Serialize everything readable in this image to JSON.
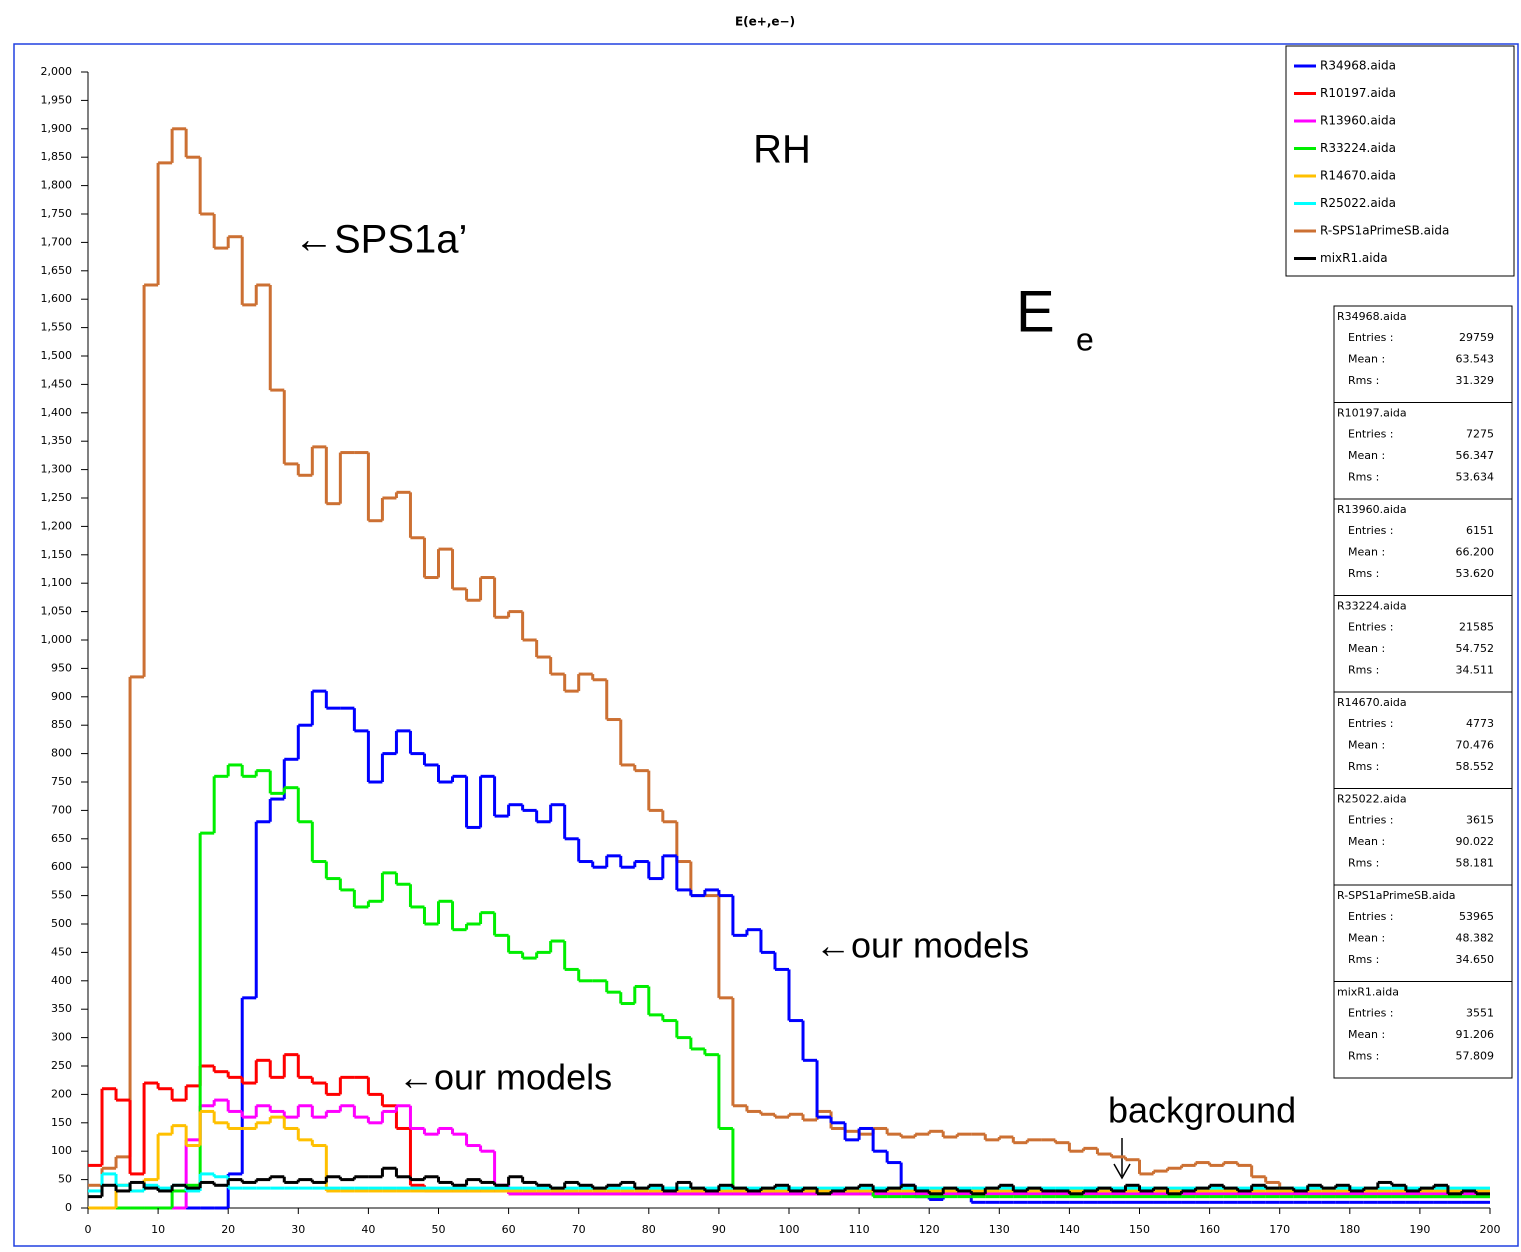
{
  "chart_data": {
    "type": "histogram",
    "title": "E(e+,e−)",
    "bins": [
      0,
      2,
      4,
      6,
      8,
      10,
      12,
      14,
      16,
      18,
      20,
      22,
      24,
      26,
      28,
      30,
      32,
      34,
      36,
      38,
      40,
      42,
      44,
      46,
      48,
      50,
      52,
      54,
      56,
      58,
      60,
      62,
      64,
      66,
      68,
      70,
      72,
      74,
      76,
      78,
      80,
      82,
      84,
      86,
      88,
      90,
      92,
      94,
      96,
      98,
      100,
      102,
      104,
      106,
      108,
      110,
      112,
      114,
      116,
      118,
      120,
      122,
      124,
      126,
      128,
      130,
      132,
      134,
      136,
      138,
      140,
      142,
      144,
      146,
      148,
      150,
      152,
      154,
      156,
      158,
      160,
      162,
      164,
      166,
      168,
      170,
      172,
      174,
      176,
      178,
      180,
      182,
      184,
      186,
      188,
      190,
      192,
      194,
      196,
      198,
      200
    ],
    "series": [
      {
        "name": "R34968.aida",
        "color": "#0000ff",
        "values": [
          0,
          0,
          0,
          0,
          0,
          0,
          0,
          0,
          0,
          0,
          60,
          370,
          680,
          720,
          790,
          850,
          910,
          880,
          880,
          840,
          750,
          800,
          840,
          800,
          780,
          750,
          760,
          670,
          760,
          690,
          710,
          700,
          680,
          710,
          650,
          610,
          600,
          620,
          600,
          610,
          580,
          620,
          560,
          550,
          560,
          550,
          480,
          490,
          450,
          420,
          330,
          260,
          160,
          150,
          120,
          140,
          100,
          80,
          40,
          20,
          15,
          30,
          30,
          10,
          10,
          10,
          10,
          10,
          10,
          10,
          10,
          10,
          10,
          10,
          10,
          10,
          10,
          10,
          10,
          10,
          10,
          10,
          10,
          10,
          10,
          10,
          10,
          10,
          10,
          10,
          10,
          10,
          10,
          10,
          10,
          10,
          10,
          10,
          10,
          10
        ]
      },
      {
        "name": "R10197.aida",
        "color": "#ff0000",
        "values": [
          75,
          210,
          190,
          60,
          220,
          210,
          190,
          215,
          250,
          240,
          230,
          220,
          260,
          230,
          270,
          230,
          220,
          200,
          230,
          230,
          200,
          180,
          140,
          40,
          30,
          30,
          30,
          30,
          30,
          30,
          25,
          25,
          25,
          25,
          25,
          25,
          25,
          25,
          25,
          25,
          25,
          25,
          25,
          25,
          25,
          25,
          25,
          25,
          25,
          25,
          25,
          25,
          25,
          25,
          25,
          25,
          25,
          25,
          25,
          25,
          25,
          25,
          25,
          25,
          25,
          25,
          25,
          25,
          25,
          25,
          25,
          25,
          25,
          25,
          25,
          25,
          25,
          25,
          25,
          25,
          25,
          25,
          25,
          25,
          25,
          25,
          25,
          25,
          25,
          25,
          25,
          25,
          25,
          25,
          25,
          25,
          25,
          25,
          25,
          25
        ]
      },
      {
        "name": "R13960.aida",
        "color": "#ff00ff",
        "values": [
          0,
          0,
          0,
          0,
          0,
          0,
          0,
          120,
          180,
          190,
          170,
          160,
          180,
          170,
          160,
          180,
          160,
          170,
          180,
          160,
          150,
          170,
          180,
          140,
          130,
          140,
          130,
          110,
          100,
          40,
          25,
          25,
          25,
          25,
          25,
          25,
          25,
          25,
          25,
          25,
          25,
          25,
          25,
          25,
          25,
          25,
          25,
          25,
          25,
          25,
          25,
          25,
          25,
          25,
          25,
          25,
          25,
          25,
          25,
          25,
          25,
          25,
          25,
          25,
          25,
          25,
          25,
          25,
          25,
          25,
          25,
          25,
          25,
          25,
          25,
          25,
          25,
          25,
          25,
          25,
          25,
          25,
          25,
          25,
          25,
          25,
          25,
          25,
          25,
          25,
          25,
          25,
          25,
          25,
          25,
          25,
          25,
          25,
          25,
          25
        ]
      },
      {
        "name": "R33224.aida",
        "color": "#00ee00",
        "values": [
          0,
          0,
          0,
          0,
          0,
          0,
          30,
          40,
          660,
          760,
          780,
          760,
          770,
          730,
          740,
          680,
          610,
          580,
          560,
          530,
          540,
          590,
          570,
          530,
          500,
          540,
          490,
          500,
          520,
          480,
          450,
          440,
          450,
          470,
          420,
          400,
          400,
          380,
          360,
          390,
          340,
          330,
          300,
          280,
          270,
          140,
          35,
          30,
          30,
          30,
          30,
          30,
          30,
          30,
          30,
          30,
          20,
          20,
          20,
          20,
          20,
          20,
          20,
          20,
          20,
          20,
          20,
          20,
          20,
          20,
          20,
          20,
          20,
          20,
          20,
          20,
          20,
          20,
          20,
          20,
          20,
          20,
          20,
          20,
          20,
          20,
          20,
          20,
          20,
          20,
          20,
          20,
          20,
          20,
          20,
          20,
          20,
          20,
          20,
          20
        ]
      },
      {
        "name": "R14670.aida",
        "color": "#ffc000",
        "values": [
          0,
          0,
          40,
          30,
          50,
          130,
          145,
          110,
          170,
          150,
          140,
          140,
          150,
          160,
          140,
          120,
          110,
          30,
          30,
          30,
          30,
          30,
          30,
          30,
          30,
          30,
          30,
          30,
          30,
          30,
          30,
          30,
          30,
          30,
          30,
          30,
          30,
          30,
          30,
          30,
          30,
          30,
          30,
          30,
          30,
          30,
          30,
          30,
          30,
          30,
          30,
          30,
          30,
          30,
          30,
          30,
          30,
          30,
          30,
          30,
          30,
          30,
          30,
          30,
          30,
          30,
          30,
          30,
          30,
          30,
          30,
          30,
          30,
          30,
          30,
          30,
          30,
          30,
          30,
          30,
          30,
          30,
          30,
          30,
          30,
          30,
          30,
          30,
          30,
          30,
          30,
          30,
          30,
          30,
          30,
          30,
          30,
          30,
          30,
          30
        ]
      },
      {
        "name": "R25022.aida",
        "color": "#00ffff",
        "values": [
          30,
          60,
          40,
          30,
          40,
          35,
          40,
          30,
          60,
          55,
          35,
          35,
          35,
          35,
          35,
          35,
          35,
          35,
          35,
          35,
          35,
          35,
          35,
          35,
          35,
          35,
          35,
          35,
          35,
          35,
          35,
          35,
          35,
          35,
          35,
          35,
          35,
          35,
          35,
          35,
          35,
          35,
          35,
          35,
          35,
          35,
          35,
          35,
          35,
          35,
          35,
          35,
          35,
          35,
          35,
          35,
          35,
          35,
          35,
          35,
          35,
          35,
          35,
          35,
          35,
          35,
          35,
          35,
          35,
          35,
          35,
          35,
          35,
          35,
          35,
          35,
          35,
          35,
          35,
          35,
          35,
          35,
          35,
          35,
          35,
          35,
          35,
          35,
          35,
          35,
          35,
          35,
          35,
          35,
          35,
          35,
          35,
          35,
          35,
          35
        ]
      },
      {
        "name": "R-SPS1aPrimeSB.aida",
        "color": "#cc7033",
        "values": [
          40,
          70,
          90,
          935,
          1625,
          1840,
          1900,
          1850,
          1750,
          1690,
          1710,
          1590,
          1625,
          1440,
          1310,
          1290,
          1340,
          1240,
          1330,
          1330,
          1210,
          1250,
          1260,
          1180,
          1110,
          1160,
          1090,
          1070,
          1110,
          1040,
          1050,
          1000,
          970,
          940,
          910,
          940,
          930,
          860,
          780,
          770,
          700,
          680,
          610,
          550,
          550,
          370,
          180,
          170,
          165,
          160,
          165,
          155,
          170,
          140,
          135,
          130,
          140,
          130,
          125,
          130,
          135,
          125,
          130,
          130,
          120,
          125,
          115,
          120,
          120,
          115,
          100,
          105,
          95,
          90,
          85,
          60,
          65,
          70,
          75,
          80,
          75,
          80,
          75,
          55,
          45,
          30,
          25,
          20,
          20,
          20,
          20,
          20,
          20,
          20,
          20,
          20,
          20,
          20,
          20,
          20
        ]
      },
      {
        "name": "mixR1.aida",
        "color": "#000000",
        "values": [
          20,
          40,
          30,
          45,
          35,
          30,
          40,
          35,
          45,
          40,
          50,
          45,
          50,
          55,
          45,
          50,
          45,
          55,
          50,
          55,
          55,
          70,
          55,
          50,
          55,
          45,
          40,
          50,
          45,
          40,
          55,
          45,
          40,
          35,
          45,
          40,
          35,
          40,
          45,
          35,
          40,
          30,
          45,
          35,
          30,
          40,
          35,
          30,
          35,
          40,
          30,
          35,
          25,
          30,
          35,
          40,
          30,
          35,
          40,
          30,
          25,
          35,
          30,
          25,
          35,
          40,
          30,
          35,
          30,
          30,
          25,
          30,
          35,
          30,
          40,
          30,
          35,
          25,
          30,
          35,
          40,
          35,
          30,
          40,
          35,
          35,
          30,
          40,
          35,
          40,
          30,
          35,
          45,
          40,
          30,
          35,
          40,
          25,
          30,
          25
        ]
      }
    ],
    "xlim": [
      0,
      200
    ],
    "ylim": [
      0,
      2000
    ],
    "xticks": [
      0,
      10,
      20,
      30,
      40,
      50,
      60,
      70,
      80,
      90,
      100,
      110,
      120,
      130,
      140,
      150,
      160,
      170,
      180,
      190,
      200
    ],
    "yticks": [
      0,
      50,
      100,
      150,
      200,
      250,
      300,
      350,
      400,
      450,
      500,
      550,
      600,
      650,
      700,
      750,
      800,
      850,
      900,
      950,
      {
        "value": 1000,
        "label": "1,000"
      },
      {
        "value": 1050,
        "label": "1,050"
      },
      {
        "value": 1100,
        "label": "1,100"
      },
      {
        "value": 1150,
        "label": "1,150"
      },
      {
        "value": 1200,
        "label": "1,200"
      },
      {
        "value": 1250,
        "label": "1,250"
      },
      {
        "value": 1300,
        "label": "1,300"
      },
      {
        "value": 1350,
        "label": "1,350"
      },
      {
        "value": 1400,
        "label": "1,400"
      },
      {
        "value": 1450,
        "label": "1,450"
      },
      {
        "value": 1500,
        "label": "1,500"
      },
      {
        "value": 1550,
        "label": "1,550"
      },
      {
        "value": 1600,
        "label": "1,600"
      },
      {
        "value": 1650,
        "label": "1,650"
      },
      {
        "value": 1700,
        "label": "1,700"
      },
      {
        "value": 1750,
        "label": "1,750"
      },
      {
        "value": 1800,
        "label": "1,800"
      },
      {
        "value": 1850,
        "label": "1,850"
      },
      {
        "value": 1900,
        "label": "1,900"
      },
      {
        "value": 1950,
        "label": "1,950"
      },
      {
        "value": 2000,
        "label": "2,000"
      }
    ],
    "legend": "upper right",
    "stats_labels": [
      "Entries :",
      "Mean :",
      "Rms :"
    ],
    "stats": [
      {
        "name": "R34968.aida",
        "entries": "29759",
        "mean": "63.543",
        "rms": "31.329"
      },
      {
        "name": "R10197.aida",
        "entries": "7275",
        "mean": "56.347",
        "rms": "53.634"
      },
      {
        "name": "R13960.aida",
        "entries": "6151",
        "mean": "66.200",
        "rms": "53.620"
      },
      {
        "name": "R33224.aida",
        "entries": "21585",
        "mean": "54.752",
        "rms": "34.511"
      },
      {
        "name": "R14670.aida",
        "entries": "4773",
        "mean": "70.476",
        "rms": "58.552"
      },
      {
        "name": "R25022.aida",
        "entries": "3615",
        "mean": "90.022",
        "rms": "58.181"
      },
      {
        "name": "R-SPS1aPrimeSB.aida",
        "entries": "53965",
        "mean": "48.382",
        "rms": "34.650"
      },
      {
        "name": "mixR1.aida",
        "entries": "3551",
        "mean": "91.206",
        "rms": "57.809"
      }
    ],
    "annotations": {
      "rh": "RH",
      "energy": "E",
      "energy_sub": "e",
      "sps": "←SPS1a’",
      "models_upper": "←our models",
      "models_lower": "←our models",
      "background": "background"
    }
  }
}
